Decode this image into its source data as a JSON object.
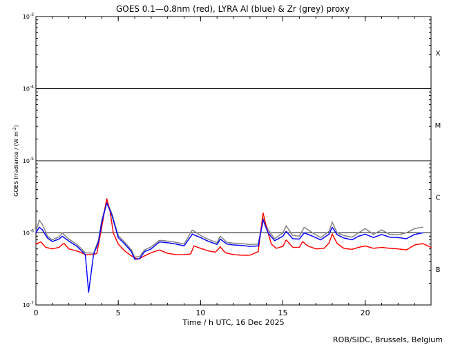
{
  "chart_data": {
    "type": "scatter",
    "title": "GOES 0.1—0.8nm (red), LYRA Al (blue) & Zr (grey) proxy",
    "xlabel": "Time / h UTC, 16 Dec 2025",
    "ylabel_main": "GOES Irradiance / (W m",
    "ylabel_sup": "-2",
    "ylabel_close": ")",
    "credit": "ROB/SIDC, Brussels, Belgium",
    "x_range": [
      0,
      24
    ],
    "y_range": [
      1e-07,
      0.001
    ],
    "y_scale": "log",
    "x_ticks": [
      {
        "value": 0,
        "label": "0"
      },
      {
        "value": 5,
        "label": "5"
      },
      {
        "value": 10,
        "label": "10"
      },
      {
        "value": 15,
        "label": "15"
      },
      {
        "value": 20,
        "label": "20"
      }
    ],
    "y_ticks": [
      {
        "value": 1e-07,
        "base": "10",
        "exp": "-7"
      },
      {
        "value": 1e-06,
        "base": "10",
        "exp": "-6"
      },
      {
        "value": 1e-05,
        "base": "10",
        "exp": "-5"
      },
      {
        "value": 0.0001,
        "base": "10",
        "exp": "-4"
      },
      {
        "value": 0.001,
        "base": "10",
        "exp": "-3"
      }
    ],
    "class_lines": [
      1e-06,
      1e-05,
      0.0001
    ],
    "flare_classes": [
      {
        "label": "B",
        "value": 3.16e-07
      },
      {
        "label": "C",
        "value": 3.16e-06
      },
      {
        "label": "M",
        "value": 3.16e-05
      },
      {
        "label": "X",
        "value": 0.000316
      }
    ],
    "series": [
      {
        "name": "GOES 0.1—0.8nm",
        "color": "#ff0000",
        "points": [
          [
            0,
            7e-07
          ],
          [
            0.3,
            7.5e-07
          ],
          [
            0.6,
            6.3e-07
          ],
          [
            1.0,
            6e-07
          ],
          [
            1.4,
            6.3e-07
          ],
          [
            1.7,
            7.2e-07
          ],
          [
            2.0,
            6e-07
          ],
          [
            2.6,
            5.5e-07
          ],
          [
            3.0,
            5e-07
          ],
          [
            3.5,
            5e-07
          ],
          [
            3.7,
            5.2e-07
          ],
          [
            4.0,
            1.2e-06
          ],
          [
            4.3,
            3e-06
          ],
          [
            4.5,
            2e-06
          ],
          [
            4.7,
            1e-06
          ],
          [
            5.0,
            7e-07
          ],
          [
            5.4,
            5.6e-07
          ],
          [
            5.8,
            4.8e-07
          ],
          [
            6.2,
            4.3e-07
          ],
          [
            6.6,
            4.8e-07
          ],
          [
            7.0,
            5.3e-07
          ],
          [
            7.5,
            5.8e-07
          ],
          [
            8.0,
            5.2e-07
          ],
          [
            8.5,
            5e-07
          ],
          [
            9.0,
            5e-07
          ],
          [
            9.4,
            5.1e-07
          ],
          [
            9.6,
            6.6e-07
          ],
          [
            10.0,
            6.1e-07
          ],
          [
            10.5,
            5.6e-07
          ],
          [
            10.9,
            5.4e-07
          ],
          [
            11.2,
            6.4e-07
          ],
          [
            11.5,
            5.3e-07
          ],
          [
            12.0,
            5e-07
          ],
          [
            12.5,
            4.9e-07
          ],
          [
            13.0,
            4.9e-07
          ],
          [
            13.5,
            5.5e-07
          ],
          [
            13.8,
            1.9e-06
          ],
          [
            14.0,
            1.2e-06
          ],
          [
            14.3,
            7e-07
          ],
          [
            14.6,
            6.1e-07
          ],
          [
            15.0,
            6.5e-07
          ],
          [
            15.2,
            8e-07
          ],
          [
            15.6,
            6.3e-07
          ],
          [
            16.0,
            6.3e-07
          ],
          [
            16.2,
            7.6e-07
          ],
          [
            16.5,
            6.6e-07
          ],
          [
            17.0,
            6e-07
          ],
          [
            17.5,
            6.1e-07
          ],
          [
            17.8,
            7.2e-07
          ],
          [
            18.0,
            9.6e-07
          ],
          [
            18.3,
            7.1e-07
          ],
          [
            18.7,
            6.1e-07
          ],
          [
            19.2,
            5.9e-07
          ],
          [
            19.6,
            6.3e-07
          ],
          [
            20.0,
            6.6e-07
          ],
          [
            20.5,
            6.1e-07
          ],
          [
            21.0,
            6.3e-07
          ],
          [
            21.5,
            6.1e-07
          ],
          [
            22.0,
            6e-07
          ],
          [
            22.5,
            5.8e-07
          ],
          [
            23.0,
            6.8e-07
          ],
          [
            23.5,
            7.1e-07
          ],
          [
            24.0,
            6.3e-07
          ]
        ]
      },
      {
        "name": "LYRA Al proxy",
        "color": "#0000ff",
        "points": [
          [
            0,
            1e-06
          ],
          [
            0.2,
            1.2e-06
          ],
          [
            0.4,
            1.1e-06
          ],
          [
            0.7,
            8.5e-07
          ],
          [
            1.0,
            7.6e-07
          ],
          [
            1.4,
            8.2e-07
          ],
          [
            1.6,
            9e-07
          ],
          [
            2.0,
            7.7e-07
          ],
          [
            2.5,
            6.5e-07
          ],
          [
            3.0,
            5e-07
          ],
          [
            3.2,
            1.5e-07
          ],
          [
            3.5,
            5e-07
          ],
          [
            3.8,
            7.5e-07
          ],
          [
            4.0,
            1.4e-06
          ],
          [
            4.3,
            2.6e-06
          ],
          [
            4.6,
            1.8e-06
          ],
          [
            5.0,
            8.6e-07
          ],
          [
            5.4,
            7e-07
          ],
          [
            5.8,
            5.5e-07
          ],
          [
            6.0,
            4.3e-07
          ],
          [
            6.3,
            4.4e-07
          ],
          [
            6.6,
            5.5e-07
          ],
          [
            7.0,
            6e-07
          ],
          [
            7.5,
            7.5e-07
          ],
          [
            8.0,
            7.3e-07
          ],
          [
            8.5,
            7e-07
          ],
          [
            9.0,
            6.6e-07
          ],
          [
            9.5,
            9.6e-07
          ],
          [
            10.0,
            8.6e-07
          ],
          [
            10.5,
            7.6e-07
          ],
          [
            11.0,
            6.9e-07
          ],
          [
            11.2,
            8.2e-07
          ],
          [
            11.6,
            7e-07
          ],
          [
            12.0,
            6.8e-07
          ],
          [
            12.5,
            6.7e-07
          ],
          [
            13.0,
            6.5e-07
          ],
          [
            13.5,
            6.6e-07
          ],
          [
            13.8,
            1.5e-06
          ],
          [
            14.1,
            1e-06
          ],
          [
            14.5,
            7.8e-07
          ],
          [
            15.0,
            9e-07
          ],
          [
            15.2,
            1.05e-06
          ],
          [
            15.6,
            8.3e-07
          ],
          [
            16.0,
            8.2e-07
          ],
          [
            16.3,
            1e-06
          ],
          [
            16.8,
            9e-07
          ],
          [
            17.3,
            8e-07
          ],
          [
            17.8,
            9.6e-07
          ],
          [
            18.0,
            1.2e-06
          ],
          [
            18.3,
            9.4e-07
          ],
          [
            18.7,
            8.5e-07
          ],
          [
            19.2,
            8e-07
          ],
          [
            19.6,
            9e-07
          ],
          [
            20.0,
            9.6e-07
          ],
          [
            20.5,
            8.6e-07
          ],
          [
            21.0,
            9.5e-07
          ],
          [
            21.5,
            8.7e-07
          ],
          [
            22.0,
            8.6e-07
          ],
          [
            22.5,
            8.3e-07
          ],
          [
            23.0,
            9.5e-07
          ],
          [
            23.5,
            1e-06
          ]
        ]
      },
      {
        "name": "LYRA Zr proxy",
        "color": "#808080",
        "points": [
          [
            0,
            1.05e-06
          ],
          [
            0.2,
            1.5e-06
          ],
          [
            0.4,
            1.3e-06
          ],
          [
            0.7,
            9e-07
          ],
          [
            1.0,
            8e-07
          ],
          [
            1.4,
            8.8e-07
          ],
          [
            1.6,
            1e-06
          ],
          [
            2.0,
            8.2e-07
          ],
          [
            2.5,
            6.9e-07
          ],
          [
            3.0,
            5.3e-07
          ],
          [
            3.5,
            5.2e-07
          ],
          [
            3.8,
            8e-07
          ],
          [
            4.0,
            1.5e-06
          ],
          [
            4.3,
            2.7e-06
          ],
          [
            4.6,
            1.9e-06
          ],
          [
            5.0,
            9.2e-07
          ],
          [
            5.4,
            7.4e-07
          ],
          [
            5.8,
            5.8e-07
          ],
          [
            6.0,
            4.6e-07
          ],
          [
            6.3,
            4.7e-07
          ],
          [
            6.6,
            5.8e-07
          ],
          [
            7.0,
            6.4e-07
          ],
          [
            7.5,
            7.9e-07
          ],
          [
            8.0,
            7.7e-07
          ],
          [
            8.5,
            7.4e-07
          ],
          [
            9.0,
            7e-07
          ],
          [
            9.5,
            1.1e-06
          ],
          [
            10.0,
            9.2e-07
          ],
          [
            10.5,
            8.1e-07
          ],
          [
            11.0,
            7.3e-07
          ],
          [
            11.2,
            9e-07
          ],
          [
            11.6,
            7.4e-07
          ],
          [
            12.0,
            7.2e-07
          ],
          [
            12.5,
            7.1e-07
          ],
          [
            13.0,
            6.9e-07
          ],
          [
            13.5,
            7e-07
          ],
          [
            13.8,
            1.6e-06
          ],
          [
            14.1,
            1.1e-06
          ],
          [
            14.5,
            8.3e-07
          ],
          [
            15.0,
            1e-06
          ],
          [
            15.2,
            1.25e-06
          ],
          [
            15.6,
            9.2e-07
          ],
          [
            16.0,
            9e-07
          ],
          [
            16.3,
            1.2e-06
          ],
          [
            16.8,
            1e-06
          ],
          [
            17.3,
            8.6e-07
          ],
          [
            17.8,
            1.05e-06
          ],
          [
            18.0,
            1.4e-06
          ],
          [
            18.3,
            1e-06
          ],
          [
            18.7,
            9.2e-07
          ],
          [
            19.2,
            8.7e-07
          ],
          [
            19.6,
            1e-06
          ],
          [
            20.0,
            1.15e-06
          ],
          [
            20.5,
            9.5e-07
          ],
          [
            21.0,
            1.1e-06
          ],
          [
            21.5,
            9.5e-07
          ],
          [
            22.0,
            9.4e-07
          ],
          [
            22.5,
            1e-06
          ],
          [
            23.0,
            1.15e-06
          ],
          [
            23.5,
            1.2e-06
          ]
        ]
      }
    ]
  }
}
